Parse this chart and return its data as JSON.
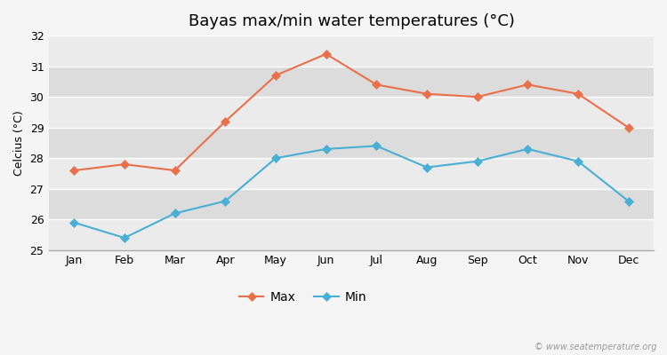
{
  "title": "Bayas max/min water temperatures (°C)",
  "ylabel": "Celcius (°C)",
  "months": [
    "Jan",
    "Feb",
    "Mar",
    "Apr",
    "May",
    "Jun",
    "Jul",
    "Aug",
    "Sep",
    "Oct",
    "Nov",
    "Dec"
  ],
  "max_temps": [
    27.6,
    27.8,
    27.6,
    29.2,
    30.7,
    31.4,
    30.4,
    30.1,
    30.0,
    30.4,
    30.1,
    29.0
  ],
  "min_temps": [
    25.9,
    25.4,
    26.2,
    26.6,
    28.0,
    28.3,
    28.4,
    27.7,
    27.9,
    28.3,
    27.9,
    26.6
  ],
  "max_color": "#e8704a",
  "min_color": "#4aafd4",
  "fig_bg_color": "#f5f5f5",
  "plot_bg_color": "#e8e8e8",
  "band_light_color": "#ebebeb",
  "band_dark_color": "#dcdcdc",
  "grid_color": "#ffffff",
  "bottom_line_color": "#aaaaaa",
  "ylim": [
    25,
    32
  ],
  "yticks": [
    25,
    26,
    27,
    28,
    29,
    30,
    31,
    32
  ],
  "legend_labels": [
    "Max",
    "Min"
  ],
  "watermark": "© www.seatemperature.org",
  "title_fontsize": 13,
  "axis_label_fontsize": 9,
  "tick_fontsize": 9,
  "legend_fontsize": 10
}
